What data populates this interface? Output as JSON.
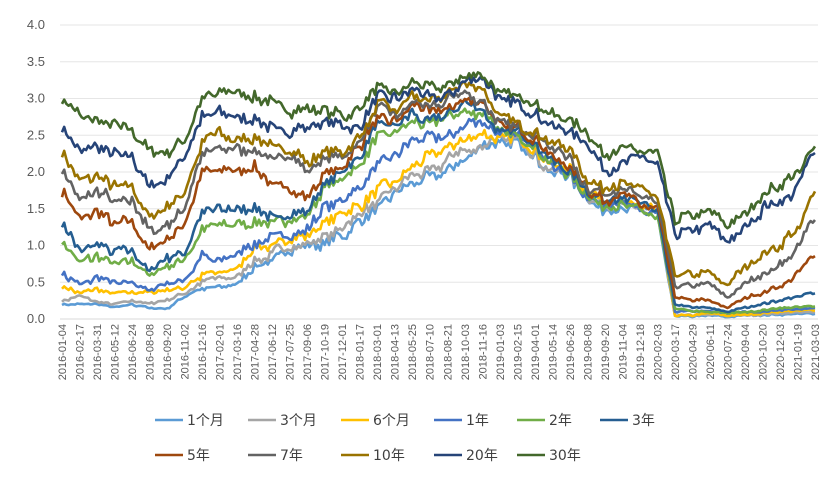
{
  "chart_data": {
    "type": "line",
    "title": "",
    "xlabel": "",
    "ylabel": "",
    "ylim": [
      0,
      4.0
    ],
    "yticks": [
      "0.0",
      "0.5",
      "1.0",
      "1.5",
      "2.0",
      "2.5",
      "3.0",
      "3.5",
      "4.0"
    ],
    "grid": true,
    "legend_position": "bottom",
    "x": [
      "2016-01-04",
      "2016-02-17",
      "2016-03-31",
      "2016-05-12",
      "2016-06-24",
      "2016-08-08",
      "2016-09-20",
      "2016-11-02",
      "2016-12-16",
      "2017-02-01",
      "2017-03-16",
      "2017-04-28",
      "2017-06-12",
      "2017-07-25",
      "2017-09-06",
      "2017-10-19",
      "2017-12-01",
      "2018-01-17",
      "2018-03-01",
      "2018-04-13",
      "2018-05-25",
      "2018-07-10",
      "2018-08-21",
      "2018-10-03",
      "2018-11-16",
      "2019-01-03",
      "2019-02-15",
      "2019-04-01",
      "2019-05-14",
      "2019-06-26",
      "2019-08-08",
      "2019-09-20",
      "2019-11-04",
      "2019-12-18",
      "2020-02-03",
      "2020-03-17",
      "2020-04-29",
      "2020-06-11",
      "2020-07-24",
      "2020-09-04",
      "2020-10-20",
      "2020-12-03",
      "2021-01-19",
      "2021-03-03"
    ],
    "series": [
      {
        "name": "1个月",
        "color": "#5b9bd5",
        "values": [
          0.2,
          0.2,
          0.2,
          0.15,
          0.2,
          0.15,
          0.15,
          0.3,
          0.4,
          0.45,
          0.5,
          0.7,
          0.8,
          0.95,
          0.95,
          1.0,
          1.15,
          1.3,
          1.5,
          1.7,
          1.85,
          1.95,
          2.05,
          2.2,
          2.35,
          2.35,
          2.4,
          2.2,
          1.95,
          1.95,
          1.6,
          1.5,
          1.5,
          1.5,
          1.4,
          0.05,
          0.03,
          0.05,
          0.03,
          0.05,
          0.05,
          0.06,
          0.07,
          0.08
        ]
      },
      {
        "name": "3个月",
        "color": "#a5a5a5",
        "values": [
          0.25,
          0.3,
          0.25,
          0.2,
          0.25,
          0.2,
          0.25,
          0.35,
          0.5,
          0.55,
          0.6,
          0.8,
          0.9,
          1.0,
          1.05,
          1.1,
          1.3,
          1.4,
          1.6,
          1.75,
          1.95,
          2.05,
          2.15,
          2.3,
          2.4,
          2.4,
          2.45,
          2.25,
          2.0,
          2.0,
          1.65,
          1.55,
          1.55,
          1.5,
          1.45,
          0.05,
          0.05,
          0.06,
          0.04,
          0.05,
          0.06,
          0.08,
          0.09,
          0.1
        ]
      },
      {
        "name": "6个月",
        "color": "#ffc000",
        "values": [
          0.45,
          0.35,
          0.4,
          0.35,
          0.35,
          0.35,
          0.4,
          0.45,
          0.6,
          0.6,
          0.7,
          0.95,
          1.0,
          1.1,
          1.15,
          1.3,
          1.45,
          1.55,
          1.75,
          1.85,
          2.05,
          2.2,
          2.3,
          2.45,
          2.55,
          2.45,
          2.45,
          2.3,
          2.05,
          2.05,
          1.7,
          1.6,
          1.6,
          1.55,
          1.45,
          0.05,
          0.05,
          0.08,
          0.05,
          0.06,
          0.08,
          0.1,
          0.11,
          0.12
        ]
      },
      {
        "name": "1年",
        "color": "#4472c4",
        "values": [
          0.65,
          0.45,
          0.55,
          0.5,
          0.5,
          0.4,
          0.5,
          0.55,
          0.85,
          0.8,
          0.9,
          1.05,
          1.05,
          1.15,
          1.25,
          1.5,
          1.65,
          1.8,
          2.1,
          2.2,
          2.4,
          2.45,
          2.5,
          2.65,
          2.7,
          2.5,
          2.5,
          2.35,
          2.05,
          1.95,
          1.65,
          1.55,
          1.55,
          1.5,
          1.4,
          0.1,
          0.1,
          0.1,
          0.08,
          0.1,
          0.1,
          0.12,
          0.13,
          0.15
        ]
      },
      {
        "name": "2年",
        "color": "#70ad47",
        "values": [
          1.05,
          0.75,
          0.85,
          0.75,
          0.8,
          0.6,
          0.7,
          0.8,
          1.25,
          1.25,
          1.3,
          1.35,
          1.3,
          1.35,
          1.4,
          1.75,
          1.9,
          2.1,
          2.45,
          2.5,
          2.7,
          2.65,
          2.75,
          2.85,
          2.8,
          2.55,
          2.5,
          2.35,
          2.1,
          1.95,
          1.65,
          1.55,
          1.6,
          1.5,
          1.4,
          0.15,
          0.1,
          0.1,
          0.08,
          0.1,
          0.12,
          0.15,
          0.16,
          0.18
        ]
      },
      {
        "name": "3年",
        "color": "#255e91",
        "values": [
          1.3,
          0.9,
          1.0,
          0.9,
          0.95,
          0.65,
          0.8,
          0.9,
          1.5,
          1.5,
          1.5,
          1.5,
          1.4,
          1.45,
          1.45,
          1.85,
          2.0,
          2.25,
          2.65,
          2.6,
          2.8,
          2.7,
          2.8,
          2.95,
          2.85,
          2.55,
          2.55,
          2.4,
          2.15,
          2.0,
          1.7,
          1.6,
          1.65,
          1.55,
          1.45,
          0.2,
          0.15,
          0.15,
          0.1,
          0.15,
          0.2,
          0.25,
          0.3,
          0.35
        ]
      },
      {
        "name": "5年",
        "color": "#9e480e",
        "values": [
          1.75,
          1.35,
          1.45,
          1.3,
          1.35,
          0.95,
          1.1,
          1.3,
          2.0,
          2.05,
          2.0,
          2.05,
          1.85,
          1.8,
          1.65,
          2.0,
          2.1,
          2.35,
          2.75,
          2.7,
          2.9,
          2.8,
          2.85,
          3.0,
          2.95,
          2.6,
          2.6,
          2.45,
          2.2,
          2.05,
          1.75,
          1.6,
          1.7,
          1.6,
          1.5,
          0.3,
          0.25,
          0.25,
          0.15,
          0.3,
          0.35,
          0.45,
          0.6,
          0.9
        ]
      },
      {
        "name": "7年",
        "color": "#636363",
        "values": [
          2.05,
          1.6,
          1.75,
          1.6,
          1.6,
          1.2,
          1.3,
          1.5,
          2.25,
          2.35,
          2.3,
          2.3,
          2.2,
          2.2,
          2.0,
          2.2,
          2.25,
          2.4,
          2.85,
          2.75,
          2.95,
          2.9,
          2.95,
          3.1,
          3.0,
          2.65,
          2.65,
          2.5,
          2.3,
          2.2,
          1.8,
          1.7,
          1.75,
          1.7,
          1.55,
          0.45,
          0.45,
          0.5,
          0.3,
          0.5,
          0.6,
          0.75,
          0.95,
          1.4
        ]
      },
      {
        "name": "10年",
        "color": "#997300",
        "values": [
          2.25,
          1.85,
          1.95,
          1.8,
          1.8,
          1.4,
          1.55,
          1.7,
          2.4,
          2.55,
          2.45,
          2.45,
          2.35,
          2.3,
          2.15,
          2.3,
          2.3,
          2.5,
          2.9,
          2.85,
          3.0,
          2.95,
          3.05,
          3.2,
          3.1,
          2.75,
          2.7,
          2.55,
          2.4,
          2.3,
          1.9,
          1.75,
          1.85,
          1.8,
          1.6,
          0.6,
          0.6,
          0.65,
          0.45,
          0.7,
          0.85,
          1.0,
          1.2,
          1.75
        ]
      },
      {
        "name": "20年",
        "color": "#264478",
        "values": [
          2.6,
          2.3,
          2.3,
          2.25,
          2.2,
          1.8,
          1.9,
          2.2,
          2.75,
          2.8,
          2.8,
          2.7,
          2.6,
          2.55,
          2.6,
          2.7,
          2.6,
          2.6,
          3.05,
          3.0,
          3.1,
          3.05,
          3.05,
          3.2,
          3.25,
          2.95,
          2.95,
          2.8,
          2.65,
          2.55,
          2.4,
          2.0,
          2.15,
          2.2,
          2.1,
          1.15,
          1.2,
          1.3,
          1.0,
          1.25,
          1.5,
          1.6,
          1.8,
          2.35
        ]
      },
      {
        "name": "30年",
        "color": "#43682b",
        "values": [
          3.0,
          2.75,
          2.7,
          2.65,
          2.55,
          2.25,
          2.25,
          2.45,
          3.05,
          3.1,
          3.1,
          3.05,
          2.95,
          2.8,
          2.85,
          2.85,
          2.75,
          2.85,
          3.15,
          3.05,
          3.2,
          3.1,
          3.15,
          3.3,
          3.35,
          3.05,
          3.05,
          2.95,
          2.8,
          2.7,
          2.55,
          2.2,
          2.35,
          2.3,
          2.25,
          1.35,
          1.45,
          1.5,
          1.3,
          1.45,
          1.7,
          1.8,
          1.95,
          2.45
        ]
      }
    ]
  }
}
